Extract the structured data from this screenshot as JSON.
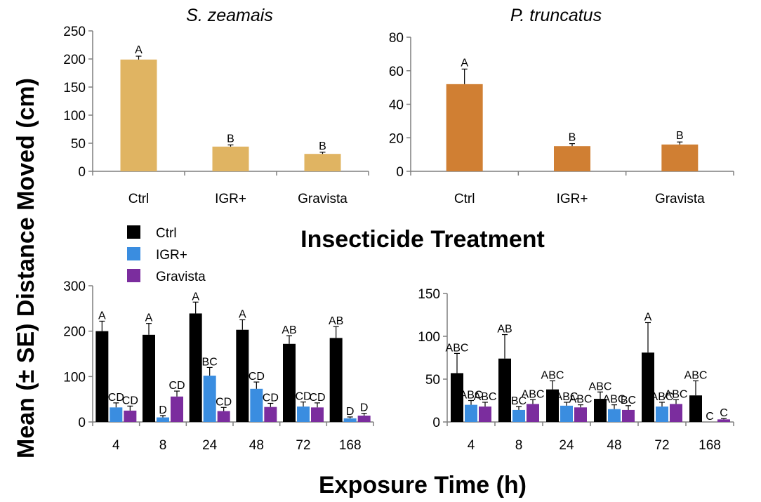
{
  "figure": {
    "y_label": "Mean (± SE) Distance Moved (cm)",
    "middle_label": "Insecticide Treatment",
    "bottom_label": "Exposure Time (h)"
  },
  "legend": [
    {
      "label": "Ctrl",
      "color": "#000000"
    },
    {
      "label": "IGR+",
      "color": "#3a8de0"
    },
    {
      "label": "Gravista",
      "color": "#7b2d9e"
    }
  ],
  "chart_data": [
    {
      "type": "bar",
      "title": "S. zeamais",
      "categories": [
        "Ctrl",
        "IGR+",
        "Gravista"
      ],
      "values": [
        199,
        44,
        31
      ],
      "errors": [
        6,
        3,
        3
      ],
      "letters": [
        "A",
        "B",
        "B"
      ],
      "color": "#e0b462",
      "ylim": [
        0,
        250
      ],
      "yticks": [
        0,
        50,
        100,
        150,
        200,
        250
      ],
      "xlabel": "Insecticide Treatment",
      "ylabel": "Mean (± SE) Distance Moved (cm)"
    },
    {
      "type": "bar",
      "title": "P. truncatus",
      "categories": [
        "Ctrl",
        "IGR+",
        "Gravista"
      ],
      "values": [
        52,
        15,
        16
      ],
      "errors": [
        9,
        1.5,
        1.5
      ],
      "letters": [
        "A",
        "B",
        "B"
      ],
      "color": "#d07f33",
      "ylim": [
        0,
        80
      ],
      "yticks": [
        0,
        20,
        40,
        60,
        80
      ],
      "xlabel": "Insecticide Treatment",
      "ylabel": "Mean (± SE) Distance Moved (cm)"
    },
    {
      "type": "bar",
      "title": "",
      "categories": [
        "4",
        "8",
        "24",
        "48",
        "72",
        "168"
      ],
      "series": [
        {
          "name": "Ctrl",
          "values": [
            200,
            192,
            239,
            203,
            172,
            185
          ],
          "errors": [
            22,
            25,
            25,
            22,
            18,
            25
          ],
          "letters": [
            "A",
            "A",
            "A",
            "A",
            "AB",
            "AB"
          ]
        },
        {
          "name": "IGR+",
          "values": [
            32,
            10,
            102,
            73,
            34,
            8
          ],
          "errors": [
            10,
            4,
            18,
            15,
            10,
            3
          ],
          "letters": [
            "CD",
            "D",
            "BC",
            "CD",
            "CD",
            "D"
          ]
        },
        {
          "name": "Gravista",
          "values": [
            25,
            56,
            24,
            33,
            32,
            14
          ],
          "errors": [
            10,
            12,
            8,
            8,
            10,
            5
          ],
          "letters": [
            "CD",
            "CD",
            "CD",
            "CD",
            "CD",
            "D"
          ]
        }
      ],
      "ylim": [
        0,
        300
      ],
      "yticks": [
        0,
        100,
        200,
        300
      ],
      "xlabel": "Exposure Time (h)",
      "ylabel": "Mean (± SE) Distance Moved (cm)"
    },
    {
      "type": "bar",
      "title": "",
      "categories": [
        "4",
        "8",
        "24",
        "48",
        "72",
        "168"
      ],
      "series": [
        {
          "name": "Ctrl",
          "values": [
            57,
            74,
            38,
            27,
            81,
            31
          ],
          "errors": [
            23,
            28,
            10,
            8,
            35,
            17
          ],
          "letters": [
            "ABC",
            "AB",
            "ABC",
            "ABC",
            "A",
            "ABC"
          ]
        },
        {
          "name": "IGR+",
          "values": [
            20,
            14,
            19,
            15,
            18,
            0
          ],
          "errors": [
            5,
            4,
            4,
            5,
            5,
            0
          ],
          "letters": [
            "ABC",
            "BC",
            "ABC",
            "ABC",
            "ABC",
            "C"
          ]
        },
        {
          "name": "Gravista",
          "values": [
            18,
            21,
            17,
            14,
            21,
            3
          ],
          "errors": [
            5,
            5,
            3,
            5,
            5,
            1
          ],
          "letters": [
            "ABC",
            "ABC",
            "ABC",
            "BC",
            "ABC",
            "C"
          ]
        }
      ],
      "ylim": [
        0,
        150
      ],
      "yticks": [
        0,
        50,
        100,
        150
      ],
      "xlabel": "Exposure Time (h)",
      "ylabel": "Mean (± SE) Distance Moved (cm)"
    }
  ]
}
